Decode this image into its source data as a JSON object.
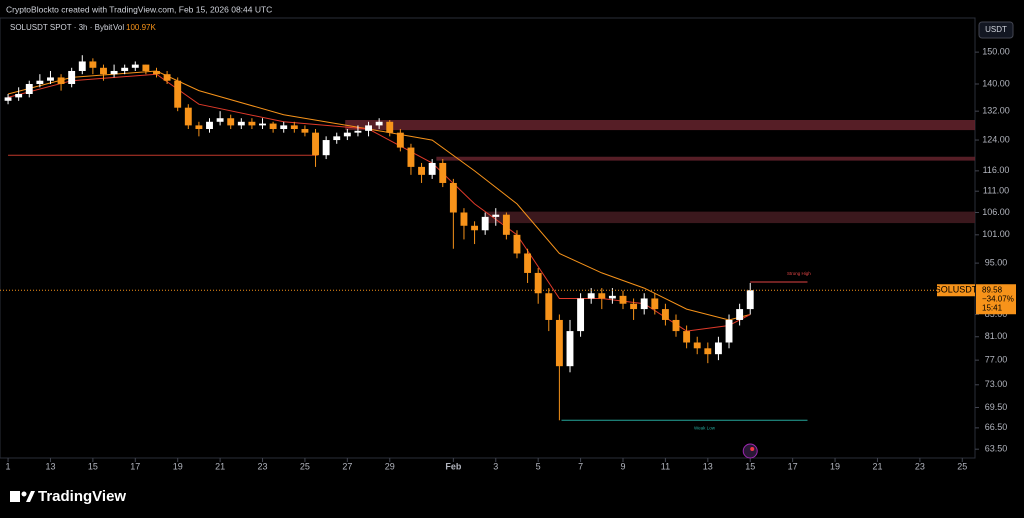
{
  "header": {
    "caption": "CryptoBlockto created with TradingView.com, Feb 15, 2026 08:44 UTC"
  },
  "footer": {
    "brand": "TradingView"
  },
  "chart_data": {
    "type": "candlestick",
    "symbol": "SOLUSDT SPOT · 3h · Bybit",
    "volume_label": "Vol",
    "volume": "100.97K",
    "currency": "USDT",
    "log_scale": true,
    "up_color": "#ffffff",
    "down_color": "#f7931a",
    "x": [
      11,
      11.5,
      12,
      12.5,
      13,
      13.5,
      14,
      14.5,
      15,
      15.5,
      16,
      16.5,
      17,
      17.5,
      18,
      18.5,
      19,
      19.5,
      20,
      20.5,
      21,
      21.5,
      22,
      22.5,
      23,
      23.5,
      24,
      24.5,
      25,
      25.5,
      26,
      26.5,
      27,
      27.5,
      28,
      28.5,
      29,
      29.5,
      30,
      30.5,
      31,
      31.5,
      32,
      32.5,
      33,
      33.5,
      34,
      34.5,
      35,
      35.5,
      36,
      36.5,
      37,
      37.5,
      38,
      38.5,
      39,
      39.5,
      40,
      40.5,
      41,
      41.5,
      42,
      42.5,
      43,
      43.5,
      44,
      44.5,
      45,
      45.5,
      46
    ],
    "open": [
      135,
      136,
      137,
      140,
      141,
      142,
      140,
      144,
      147,
      145,
      143,
      144,
      145,
      146,
      144,
      143,
      141,
      133,
      128,
      127,
      129,
      130,
      128,
      129,
      128,
      128.5,
      127,
      128,
      127,
      126,
      120,
      124,
      125,
      126,
      126.5,
      128,
      129,
      126,
      122,
      117,
      115,
      118,
      113,
      106,
      103,
      102,
      105,
      105.5,
      101,
      97,
      93,
      89,
      84,
      76,
      82,
      88,
      89,
      88,
      88.5,
      87,
      86,
      88,
      86,
      84,
      82,
      80,
      79,
      78,
      80,
      84,
      86
    ],
    "high": [
      137,
      139,
      141,
      143,
      144,
      143,
      145,
      149,
      148,
      146,
      146,
      146,
      147,
      146,
      145,
      144,
      142,
      134,
      129,
      130,
      132,
      131,
      130,
      130,
      130,
      129,
      129,
      129,
      128,
      127,
      125,
      126,
      127,
      128,
      129,
      130,
      129.5,
      127,
      123,
      118,
      119,
      119,
      114,
      107,
      104,
      106,
      107,
      106,
      102,
      98,
      94,
      90,
      85,
      84,
      89,
      90,
      90,
      90,
      89.5,
      88,
      89,
      89,
      87,
      85,
      83,
      81,
      80,
      81,
      85,
      87,
      91
    ],
    "low": [
      134,
      135,
      136,
      139,
      140,
      138,
      139,
      143,
      143,
      141,
      142,
      143,
      144,
      143,
      142,
      140,
      132,
      127,
      125,
      126,
      128,
      127,
      127,
      127,
      127,
      126,
      126,
      126,
      125,
      117,
      119,
      123,
      124,
      125,
      125,
      127,
      125,
      121,
      115,
      113,
      114,
      112,
      98,
      100,
      99,
      101,
      103,
      100,
      96,
      91,
      87,
      82,
      67.6,
      75,
      81,
      87,
      86,
      87,
      86,
      84,
      85,
      85,
      83,
      81,
      79,
      78,
      76.5,
      77,
      79,
      83,
      85
    ],
    "close": [
      136,
      137,
      140,
      141,
      142,
      140,
      144,
      147,
      145,
      143,
      144,
      145,
      146,
      144,
      143,
      141,
      133,
      128,
      127,
      129,
      130,
      128,
      129,
      128,
      128.5,
      127,
      128,
      127,
      126,
      120,
      124,
      125,
      126,
      126.5,
      128,
      129,
      126,
      122,
      117,
      115,
      118,
      113,
      106,
      103,
      102,
      105,
      105.5,
      101,
      97,
      93,
      89,
      84,
      76,
      82,
      88,
      89,
      88,
      88.5,
      87,
      86,
      88,
      86,
      84,
      82,
      80,
      79,
      78,
      80,
      84,
      86,
      89.58
    ],
    "moving_averages": [
      {
        "color": "#f7931a",
        "x": [
          11,
          14,
          18,
          20,
          24,
          28,
          31,
          33,
          35,
          37,
          39,
          41,
          43,
          45,
          46
        ],
        "values": [
          137,
          142,
          144,
          138,
          131,
          127,
          124,
          116,
          108,
          97,
          93,
          90,
          86,
          84,
          85
        ]
      },
      {
        "color": "#e03a2a",
        "x": [
          11,
          14,
          18,
          20,
          24,
          28,
          31,
          33,
          35,
          37,
          39,
          41,
          43,
          45,
          46
        ],
        "values": [
          136,
          141,
          143,
          134,
          129,
          127,
          118,
          108,
          101,
          88,
          88,
          87,
          82,
          83,
          85
        ]
      }
    ],
    "zones": [
      {
        "x0": 26.9,
        "x1": 56.6,
        "low": 126.7,
        "high": 129.5,
        "color": "#6b2630"
      },
      {
        "x0": 31.2,
        "x1": 56.6,
        "low": 118.6,
        "high": 119.6,
        "color": "#6b2630"
      },
      {
        "x0": 33.5,
        "x1": 56.6,
        "low": 103.6,
        "high": 106.2,
        "color": "#4a1e24"
      }
    ],
    "levels": [
      {
        "value": 120,
        "x0": 11,
        "x1": 25.6,
        "color": "#c0392b"
      },
      {
        "value": 91.2,
        "x0": 46,
        "x1": 48.7,
        "color": "#e04545",
        "label": "Strong High"
      },
      {
        "value": 67.6,
        "x0": 37.1,
        "x1": 48.7,
        "color": "#26a69a",
        "label": "Weak Low"
      }
    ],
    "last_price": {
      "symbol": "SOLUSDT",
      "value": 89.58,
      "change": "−34.07%",
      "countdown": "15:41"
    },
    "xlim": [
      10.62,
      56.6
    ],
    "xticks": [
      {
        "value": 11,
        "label": "1"
      },
      {
        "value": 13,
        "label": "13"
      },
      {
        "value": 15,
        "label": "15"
      },
      {
        "value": 17,
        "label": "17"
      },
      {
        "value": 19,
        "label": "19"
      },
      {
        "value": 21,
        "label": "21"
      },
      {
        "value": 23,
        "label": "23"
      },
      {
        "value": 25,
        "label": "25"
      },
      {
        "value": 27,
        "label": "27"
      },
      {
        "value": 29,
        "label": "29"
      },
      {
        "value": 32,
        "label": "Feb"
      },
      {
        "value": 34,
        "label": "3"
      },
      {
        "value": 36,
        "label": "5"
      },
      {
        "value": 38,
        "label": "7"
      },
      {
        "value": 40,
        "label": "9"
      },
      {
        "value": 42,
        "label": "11"
      },
      {
        "value": 44,
        "label": "13"
      },
      {
        "value": 46,
        "label": "15"
      },
      {
        "value": 48,
        "label": "17"
      },
      {
        "value": 50,
        "label": "19"
      },
      {
        "value": 52,
        "label": "21"
      },
      {
        "value": 54,
        "label": "23"
      },
      {
        "value": 56,
        "label": "25"
      }
    ],
    "ylim": [
      62.3,
      161.5
    ],
    "yticks": [
      {
        "value": 150,
        "label": "150.00"
      },
      {
        "value": 140,
        "label": "140.00"
      },
      {
        "value": 132,
        "label": "132.00"
      },
      {
        "value": 124,
        "label": "124.00"
      },
      {
        "value": 116,
        "label": "116.00"
      },
      {
        "value": 111,
        "label": "111.00"
      },
      {
        "value": 106,
        "label": "106.00"
      },
      {
        "value": 101,
        "label": "101.00"
      },
      {
        "value": 95,
        "label": "95.00"
      },
      {
        "value": 85,
        "label": "85.00"
      },
      {
        "value": 81,
        "label": "81.00"
      },
      {
        "value": 77,
        "label": "77.00"
      },
      {
        "value": 73,
        "label": "73.00"
      },
      {
        "value": 69.5,
        "label": "69.50"
      },
      {
        "value": 66.5,
        "label": "66.50"
      },
      {
        "value": 63.5,
        "label": "63.50"
      }
    ]
  }
}
